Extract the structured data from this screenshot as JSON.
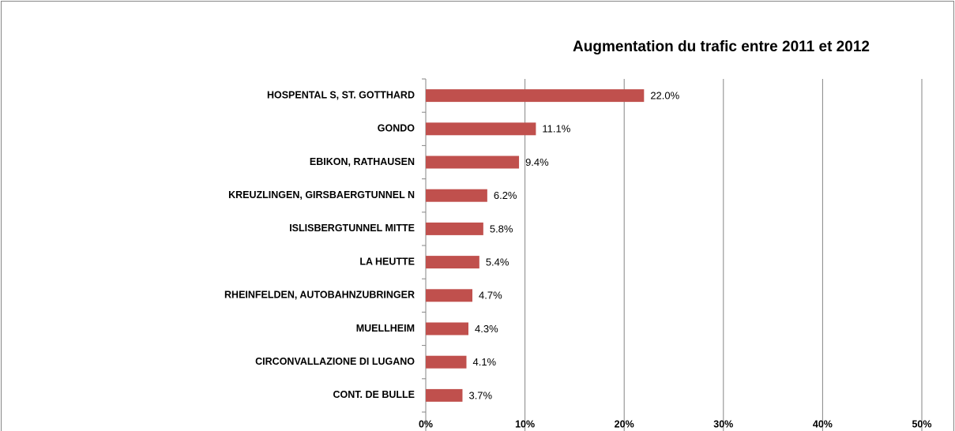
{
  "chart_data": {
    "type": "bar",
    "orientation": "horizontal",
    "title": "Augmentation du trafic entre 2011 et 2012",
    "categories": [
      "HOSPENTAL S, ST. GOTTHARD",
      "GONDO",
      "EBIKON, RATHAUSEN",
      "KREUZLINGEN, GIRSBAERGTUNNEL N",
      "ISLISBERGTUNNEL MITTE",
      "LA HEUTTE",
      "RHEINFELDEN, AUTOBAHNZUBRINGER",
      "MUELLHEIM",
      "CIRCONVALLAZIONE DI LUGANO",
      "CONT. DE BULLE"
    ],
    "values": [
      22.0,
      11.1,
      9.4,
      6.2,
      5.8,
      5.4,
      4.7,
      4.3,
      4.1,
      3.7
    ],
    "value_labels": [
      "22.0%",
      "11.1%",
      "9.4%",
      "6.2%",
      "5.8%",
      "5.4%",
      "4.7%",
      "4.3%",
      "4.1%",
      "3.7%"
    ],
    "color": "#c0504d",
    "xlim": [
      0,
      50
    ],
    "xticks": [
      {
        "value": 0,
        "label": "0%"
      },
      {
        "value": 10,
        "label": "10%"
      },
      {
        "value": 20,
        "label": "20%"
      },
      {
        "value": 30,
        "label": "30%"
      },
      {
        "value": 40,
        "label": "40%"
      },
      {
        "value": 50,
        "label": "50%"
      }
    ],
    "grid": true
  }
}
